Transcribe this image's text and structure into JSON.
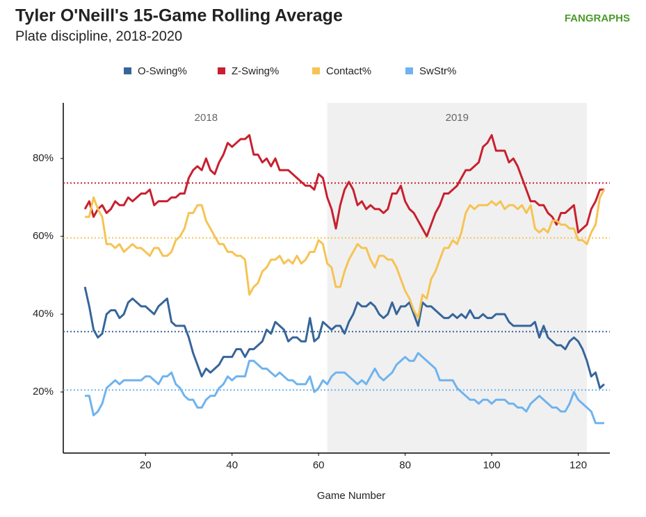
{
  "chart_data": {
    "type": "line",
    "title": "Tyler O'Neill's 15-Game Rolling Average",
    "subtitle": "Plate discipline, 2018-2020",
    "logo": "FANGRAPHS",
    "x_label": "Game Number",
    "xlim": [
      1,
      127.3
    ],
    "ylim": [
      4.3,
      94.3
    ],
    "xticks": [
      20,
      40,
      60,
      80,
      100,
      120
    ],
    "yticks": [
      {
        "value": 20,
        "label": "20%"
      },
      {
        "value": 40,
        "label": "40%"
      },
      {
        "value": 60,
        "label": "60%"
      },
      {
        "value": 80,
        "label": "80%"
      }
    ],
    "shaded_region": {
      "xlim": [
        62,
        122
      ],
      "color": "#f0f0f0"
    },
    "annotations": [
      {
        "text": "2018",
        "x": 34
      },
      {
        "text": "2019",
        "x": 92
      }
    ],
    "x": [
      6,
      7,
      8,
      9,
      10,
      11,
      12,
      13,
      14,
      15,
      16,
      17,
      18,
      19,
      20,
      21,
      22,
      23,
      24,
      25,
      26,
      27,
      28,
      29,
      30,
      31,
      32,
      33,
      34,
      35,
      36,
      37,
      38,
      39,
      40,
      41,
      42,
      43,
      44,
      45,
      46,
      47,
      48,
      49,
      50,
      51,
      52,
      53,
      54,
      55,
      56,
      57,
      58,
      59,
      60,
      61,
      62,
      63,
      64,
      65,
      66,
      67,
      68,
      69,
      70,
      71,
      72,
      73,
      74,
      75,
      76,
      77,
      78,
      79,
      80,
      81,
      82,
      83,
      84,
      85,
      86,
      87,
      88,
      89,
      90,
      91,
      92,
      93,
      94,
      95,
      96,
      97,
      98,
      99,
      100,
      101,
      102,
      103,
      104,
      105,
      106,
      107,
      108,
      109,
      110,
      111,
      112,
      113,
      114,
      115,
      116,
      117,
      118,
      119,
      120,
      121,
      122,
      123,
      124,
      125,
      126
    ],
    "series": [
      {
        "name": "O-Swing%",
        "color": "#36659a",
        "average": 35.5,
        "values": [
          47,
          42,
          36,
          34,
          35,
          40,
          41,
          41,
          39,
          40,
          43,
          44,
          43,
          42,
          42,
          41,
          40,
          42,
          43,
          44,
          38,
          37,
          37,
          37,
          34,
          30,
          27,
          24,
          26,
          25,
          26,
          27,
          29,
          29,
          29,
          31,
          31,
          29,
          31,
          31,
          32,
          33,
          36,
          35,
          38,
          37,
          36,
          33,
          34,
          34,
          33,
          33,
          39,
          33,
          34,
          38,
          37,
          36,
          37,
          37,
          35,
          38,
          40,
          43,
          42,
          42,
          43,
          42,
          40,
          39,
          40,
          43,
          40,
          42,
          42,
          43,
          40,
          37,
          43,
          42,
          42,
          41,
          40,
          39,
          39,
          40,
          39,
          40,
          39,
          41,
          39,
          39,
          40,
          39,
          39,
          40,
          40,
          40,
          38,
          37,
          37,
          37,
          37,
          37,
          38,
          34,
          37,
          34,
          33,
          32,
          32,
          31,
          33,
          34,
          33,
          31,
          28,
          24,
          25,
          21,
          22
        ]
      },
      {
        "name": "Z-Swing%",
        "color": "#c8202f",
        "average": 73.7,
        "values": [
          67,
          69,
          65,
          67,
          68,
          66,
          67,
          69,
          68,
          68,
          70,
          69,
          70,
          71,
          71,
          72,
          68,
          69,
          69,
          69,
          70,
          70,
          71,
          71,
          75,
          77,
          78,
          77,
          80,
          77,
          76,
          79,
          81,
          84,
          83,
          84,
          85,
          85,
          86,
          81,
          81,
          79,
          80,
          78,
          80,
          77,
          77,
          77,
          76,
          75,
          74,
          73,
          73,
          72,
          76,
          75,
          70,
          67,
          62,
          68,
          72,
          74,
          72,
          68,
          69,
          67,
          68,
          67,
          67,
          66,
          67,
          71,
          71,
          73,
          69,
          67,
          66,
          64,
          62,
          60,
          63,
          66,
          68,
          71,
          71,
          72,
          73,
          75,
          77,
          77,
          78,
          79,
          83,
          84,
          86,
          82,
          82,
          82,
          79,
          80,
          78,
          75,
          72,
          69,
          69,
          68,
          68,
          66,
          65,
          63,
          66,
          66,
          67,
          68,
          61,
          62,
          63,
          67,
          69,
          72,
          72
        ]
      },
      {
        "name": "Contact%",
        "color": "#f6c353",
        "average": 59.6,
        "values": [
          65,
          65,
          70,
          67,
          65,
          58,
          58,
          57,
          58,
          56,
          57,
          58,
          57,
          57,
          56,
          55,
          57,
          57,
          55,
          55,
          56,
          59,
          60,
          62,
          66,
          66,
          68,
          68,
          64,
          62,
          60,
          58,
          58,
          56,
          56,
          55,
          55,
          54,
          45,
          47,
          48,
          51,
          52,
          54,
          54,
          55,
          53,
          54,
          53,
          55,
          53,
          54,
          56,
          56,
          59,
          58,
          53,
          52,
          47,
          47,
          51,
          54,
          56,
          58,
          57,
          57,
          54,
          52,
          55,
          55,
          54,
          54,
          52,
          49,
          46,
          44,
          41,
          39,
          45,
          44,
          49,
          51,
          54,
          57,
          57,
          59,
          58,
          61,
          66,
          68,
          67,
          68,
          68,
          68,
          69,
          68,
          69,
          67,
          68,
          68,
          67,
          68,
          66,
          68,
          62,
          61,
          62,
          61,
          64,
          64,
          63,
          63,
          62,
          62,
          59,
          59,
          58,
          61,
          63,
          70,
          72
        ]
      },
      {
        "name": "SwStr%",
        "color": "#6fb3ee",
        "average": 20.5,
        "values": [
          19,
          19,
          14,
          15,
          17,
          21,
          22,
          23,
          22,
          23,
          23,
          23,
          23,
          23,
          24,
          24,
          23,
          22,
          24,
          24,
          25,
          22,
          21,
          19,
          18,
          18,
          16,
          16,
          18,
          19,
          19,
          21,
          22,
          24,
          23,
          24,
          24,
          24,
          28,
          28,
          27,
          26,
          26,
          25,
          24,
          25,
          24,
          23,
          23,
          22,
          22,
          22,
          24,
          20,
          21,
          23,
          22,
          24,
          25,
          25,
          25,
          24,
          23,
          22,
          23,
          22,
          24,
          26,
          24,
          23,
          24,
          25,
          27,
          28,
          29,
          28,
          28,
          30,
          29,
          28,
          27,
          26,
          23,
          23,
          23,
          23,
          21,
          20,
          19,
          18,
          18,
          17,
          18,
          18,
          17,
          18,
          18,
          18,
          17,
          17,
          16,
          16,
          15,
          17,
          18,
          19,
          18,
          17,
          16,
          16,
          15,
          15,
          17,
          20,
          18,
          17,
          16,
          15,
          12,
          12,
          12
        ]
      }
    ]
  }
}
